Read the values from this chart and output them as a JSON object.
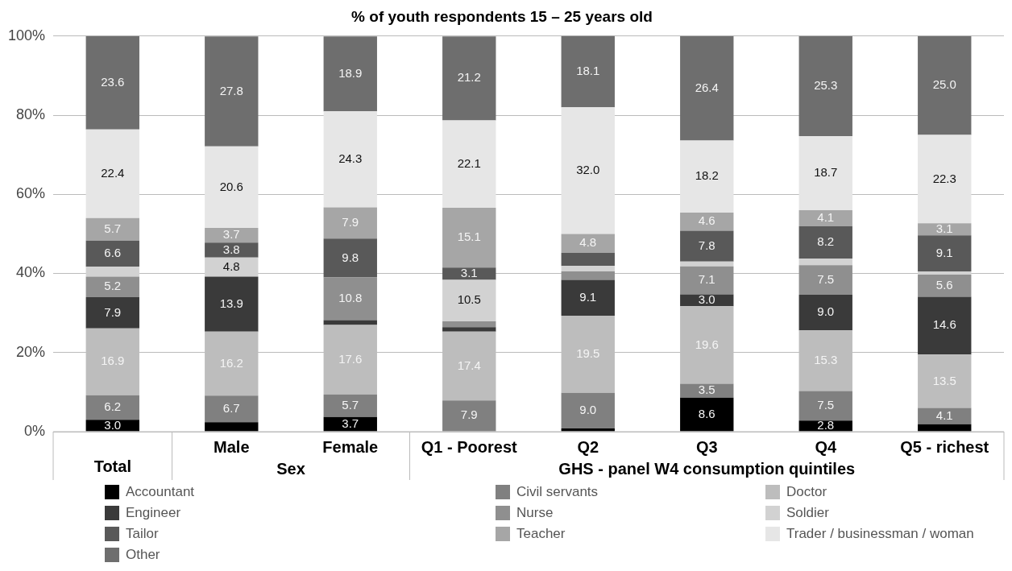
{
  "chart_data": {
    "type": "bar",
    "stacked": true,
    "title": "% of youth respondents 15 – 25 years old",
    "categories": [
      "Total",
      "Male",
      "Female",
      "Q1 - Poorest",
      "Q2",
      "Q3",
      "Q4",
      "Q5 - richest"
    ],
    "annotations": [
      "Sex",
      "GHS - panel W4 consumption quintiles"
    ],
    "ylim": [
      0,
      100
    ],
    "yticks": [
      {
        "value": 0,
        "label": "0%"
      },
      {
        "value": 20,
        "label": "20%"
      },
      {
        "value": 40,
        "label": "40%"
      },
      {
        "value": 60,
        "label": "60%"
      },
      {
        "value": 80,
        "label": "80%"
      },
      {
        "value": 100,
        "label": "100%"
      }
    ],
    "grid": "y",
    "legend": "bottom",
    "series": [
      {
        "name": "Accountant",
        "color": "#000000",
        "values": [
          3.0,
          2.4,
          3.7,
          0,
          0.8,
          8.6,
          2.8,
          1.9
        ],
        "value_labels": [
          "3.0",
          null,
          "3.7",
          null,
          null,
          "8.6",
          "2.8",
          null
        ]
      },
      {
        "name": "Civil servants",
        "color": "#808080",
        "values": [
          6.2,
          6.7,
          5.7,
          7.9,
          9.0,
          3.5,
          7.5,
          4.1
        ],
        "value_labels": [
          "6.2",
          "6.7",
          "5.7",
          "7.9",
          "9.0",
          "3.5",
          "7.5",
          "4.1"
        ]
      },
      {
        "name": "Doctor",
        "color": "#bdbdbd",
        "values": [
          16.9,
          16.2,
          17.6,
          17.4,
          19.5,
          19.6,
          15.3,
          13.5
        ],
        "value_labels": [
          "16.9",
          "16.2",
          "17.6",
          "17.4",
          "19.5",
          "19.6",
          "15.3",
          "13.5"
        ]
      },
      {
        "name": "Engineer",
        "color": "#3a3a3a",
        "values": [
          7.9,
          13.9,
          1.2,
          1.1,
          9.1,
          3.0,
          9.0,
          14.6
        ],
        "value_labels": [
          "7.9",
          "13.9",
          null,
          null,
          "9.1",
          "3.0",
          "9.0",
          "14.6"
        ]
      },
      {
        "name": "Nurse",
        "color": "#8f8f8f",
        "values": [
          5.2,
          0,
          10.8,
          1.5,
          2.1,
          7.1,
          7.5,
          5.6
        ],
        "value_labels": [
          "5.2",
          null,
          "10.8",
          null,
          null,
          "7.1",
          "7.5",
          "5.6"
        ]
      },
      {
        "name": "Soldier",
        "color": "#d2d2d2",
        "values": [
          2.5,
          4.8,
          0,
          10.5,
          1.4,
          1.2,
          1.6,
          0.8
        ],
        "value_labels": [
          null,
          "4.8",
          null,
          "10.5",
          null,
          null,
          null,
          null
        ]
      },
      {
        "name": "Tailor",
        "color": "#595959",
        "values": [
          6.6,
          3.8,
          9.8,
          3.1,
          3.3,
          7.8,
          8.2,
          9.1
        ],
        "value_labels": [
          "6.6",
          "3.8",
          "9.8",
          "3.1",
          null,
          "7.8",
          "8.2",
          "9.1"
        ]
      },
      {
        "name": "Teacher",
        "color": "#a6a6a6",
        "values": [
          5.7,
          3.7,
          7.9,
          15.1,
          4.8,
          4.6,
          4.1,
          3.1
        ],
        "value_labels": [
          "5.7",
          "3.7",
          "7.9",
          "15.1",
          "4.8",
          "4.6",
          "4.1",
          "3.1"
        ]
      },
      {
        "name": "Trader / businessman / woman",
        "color": "#e6e6e6",
        "values": [
          22.4,
          20.6,
          24.3,
          22.1,
          32.0,
          18.2,
          18.7,
          22.3
        ],
        "value_labels": [
          "22.4",
          "20.6",
          "24.3",
          "22.1",
          "32.0",
          "18.2",
          "18.7",
          "22.3"
        ]
      },
      {
        "name": "Other",
        "color": "#6e6e6e",
        "values": [
          23.6,
          27.8,
          18.9,
          21.2,
          18.1,
          26.4,
          25.3,
          25.0
        ],
        "value_labels": [
          "23.6",
          "27.8",
          "18.9",
          "21.2",
          "18.1",
          "26.4",
          "25.3",
          "25.0"
        ]
      }
    ]
  }
}
